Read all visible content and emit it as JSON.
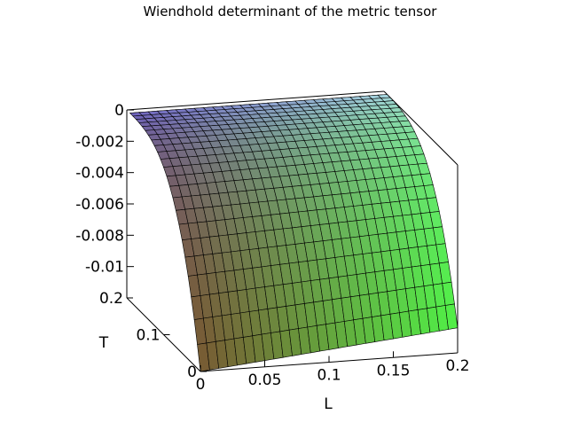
{
  "chart_data": {
    "type": "surface3d",
    "title": "Wiendhold determinant of the metric tensor",
    "xlabel": "L",
    "ylabel": "T",
    "zlabel": "",
    "x_ticks": [
      "0",
      "0.05",
      "0.1",
      "0.15",
      "0.2"
    ],
    "y_ticks": [
      "0",
      "0.1",
      "0.2"
    ],
    "z_ticks": [
      "0",
      "-0.002",
      "-0.004",
      "-0.006",
      "-0.008",
      "-0.01"
    ],
    "xlim": [
      0,
      0.2
    ],
    "ylim": [
      0,
      0.2
    ],
    "zlim": [
      -0.012,
      0
    ],
    "surface": {
      "L": [
        0,
        0.025,
        0.05,
        0.075,
        0.1,
        0.125,
        0.15,
        0.175,
        0.2
      ],
      "T": [
        0,
        0.05,
        0.1,
        0.15,
        0.2
      ],
      "z_at_T0": [
        -0.012,
        -0.0118,
        -0.0116,
        -0.0114,
        -0.0112,
        -0.011,
        -0.0108,
        -0.0106,
        -0.0104
      ],
      "z_at_Tmax": [
        0,
        0,
        0,
        0,
        0,
        0,
        0,
        0,
        0
      ]
    }
  }
}
